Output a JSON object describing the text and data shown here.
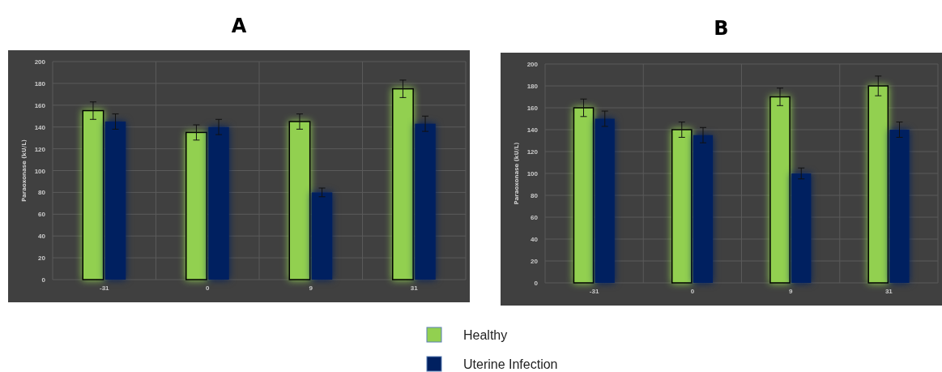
{
  "chart_data": [
    {
      "type": "bar",
      "title": "A",
      "ylabel": "Paraoxonase (kU/L)",
      "categories": [
        "-31",
        "0",
        "9",
        "31"
      ],
      "ylim": [
        0,
        200
      ],
      "yticks": [
        0,
        20,
        40,
        60,
        80,
        100,
        120,
        140,
        160,
        180,
        200
      ],
      "grid": true,
      "legend": "bottom",
      "series": [
        {
          "name": "Healthy",
          "color": "#92d050",
          "values": [
            155,
            135,
            145,
            175
          ],
          "errors": [
            8,
            7,
            7,
            8
          ]
        },
        {
          "name": "Uterine Infection",
          "color": "#002060",
          "values": [
            145,
            140,
            80,
            143
          ],
          "errors": [
            7,
            7,
            4,
            7
          ]
        }
      ]
    },
    {
      "type": "bar",
      "title": "B",
      "ylabel": "Paraoxonase (kU/L)",
      "categories": [
        "-31",
        "0",
        "9",
        "31"
      ],
      "ylim": [
        0,
        200
      ],
      "yticks": [
        0,
        20,
        40,
        60,
        80,
        100,
        120,
        140,
        160,
        180,
        200
      ],
      "grid": true,
      "series": [
        {
          "color": "#92d050",
          "values": [
            160,
            140,
            170,
            180
          ],
          "errors": [
            8,
            7,
            8,
            9
          ]
        },
        {
          "color": "#002060",
          "values": [
            150,
            135,
            100,
            140
          ],
          "errors": [
            7,
            7,
            5,
            7
          ]
        }
      ]
    }
  ]
}
